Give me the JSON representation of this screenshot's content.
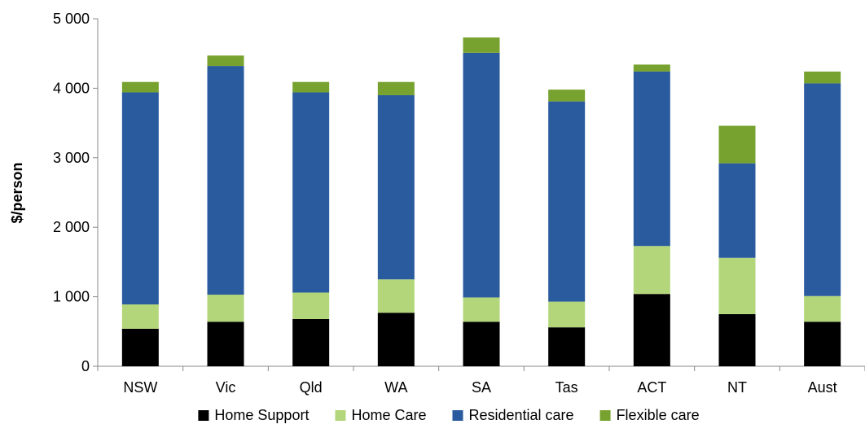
{
  "chart_data": {
    "type": "bar",
    "stacked": true,
    "title": "",
    "xlabel": "",
    "ylabel": "$/person",
    "ylim": [
      0,
      5000
    ],
    "yticks": [
      0,
      1000,
      2000,
      3000,
      4000,
      5000
    ],
    "ytick_labels": [
      "0",
      "1 000",
      "2 000",
      "3 000",
      "4 000",
      "5 000"
    ],
    "grid": false,
    "legend_position": "bottom",
    "categories": [
      "NSW",
      "Vic",
      "Qld",
      "WA",
      "SA",
      "Tas",
      "ACT",
      "NT",
      "Aust"
    ],
    "series": [
      {
        "name": "Home Support",
        "color": "#000000",
        "values": [
          540,
          640,
          680,
          770,
          640,
          560,
          1040,
          750,
          640
        ]
      },
      {
        "name": "Home Care",
        "color": "#b3d67a",
        "values": [
          350,
          390,
          380,
          480,
          350,
          370,
          690,
          810,
          370
        ]
      },
      {
        "name": "Residential care",
        "color": "#2a5b9f",
        "values": [
          3050,
          3290,
          2880,
          2650,
          3520,
          2880,
          2510,
          1360,
          3060
        ]
      },
      {
        "name": "Flexible care",
        "color": "#77a22f",
        "values": [
          150,
          150,
          150,
          190,
          220,
          170,
          100,
          540,
          170
        ]
      }
    ]
  }
}
